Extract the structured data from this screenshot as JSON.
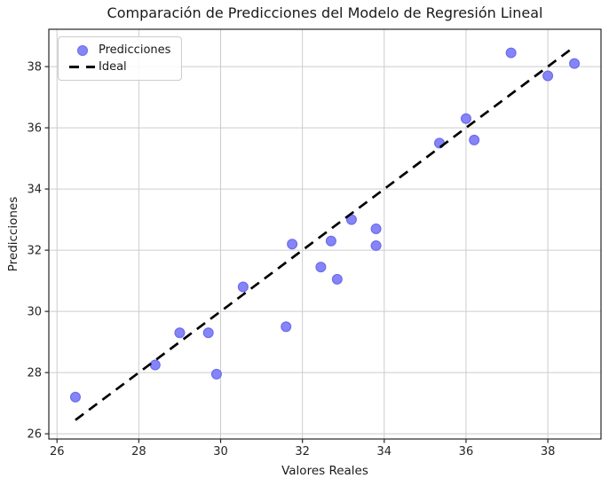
{
  "chart_data": {
    "type": "scatter",
    "title": "Comparación de Predicciones del Modelo de Regresión Lineal",
    "xlabel": "Valores Reales",
    "ylabel": "Predicciones",
    "xlim": [
      25.8,
      39.3
    ],
    "ylim": [
      25.83,
      39.22
    ],
    "xticks": [
      26,
      28,
      30,
      32,
      34,
      36,
      38
    ],
    "yticks": [
      26,
      28,
      30,
      32,
      34,
      36,
      38
    ],
    "grid": true,
    "legend": {
      "position": "upper-left",
      "entries": [
        {
          "label": "Predicciones",
          "marker": "circle",
          "color": "#8585f7"
        },
        {
          "label": "Ideal",
          "marker": "dashed-line",
          "color": "#000000"
        }
      ]
    },
    "series": [
      {
        "name": "Predicciones",
        "type": "scatter",
        "color": "#8585f7",
        "edge_color": "#6c6cf0",
        "points": [
          [
            26.45,
            27.2
          ],
          [
            28.4,
            28.25
          ],
          [
            29.0,
            29.3
          ],
          [
            29.7,
            29.3
          ],
          [
            29.9,
            27.95
          ],
          [
            30.55,
            30.8
          ],
          [
            31.6,
            29.5
          ],
          [
            31.75,
            32.2
          ],
          [
            32.45,
            31.45
          ],
          [
            32.7,
            32.3
          ],
          [
            32.85,
            31.05
          ],
          [
            33.2,
            33.0
          ],
          [
            33.8,
            32.7
          ],
          [
            33.8,
            32.15
          ],
          [
            35.35,
            35.5
          ],
          [
            36.0,
            36.3
          ],
          [
            36.2,
            35.6
          ],
          [
            37.1,
            38.45
          ],
          [
            38.0,
            37.7
          ],
          [
            38.65,
            38.1
          ]
        ]
      },
      {
        "name": "Ideal",
        "type": "line",
        "style": "dashed",
        "color": "#000000",
        "points": [
          [
            26.45,
            26.45
          ],
          [
            38.65,
            38.65
          ]
        ]
      }
    ],
    "colors": {
      "grid": "#cccccc",
      "spine": "#262626",
      "tick_label": "#262626",
      "background": "#ffffff"
    }
  }
}
